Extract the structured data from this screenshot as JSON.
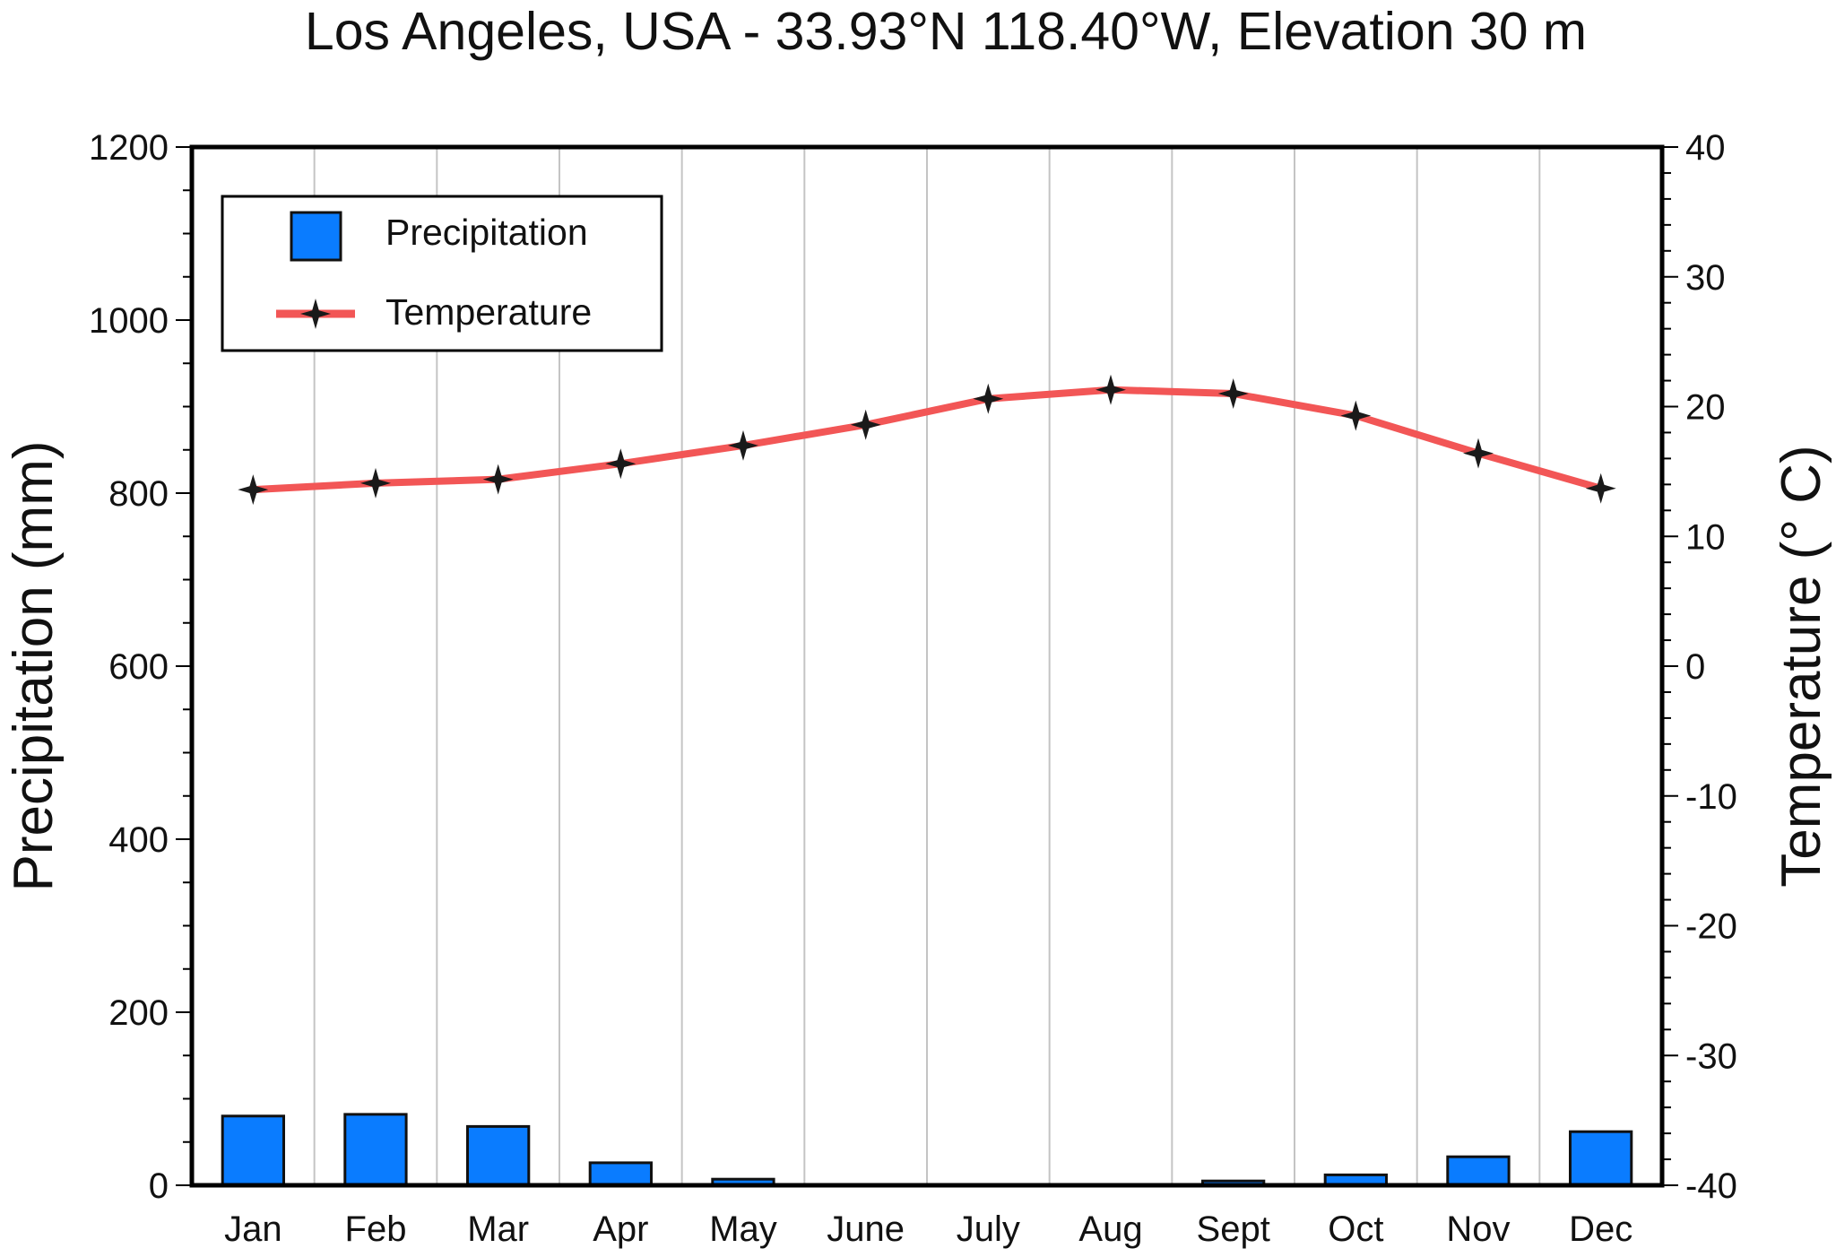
{
  "chart_data": {
    "type": "bar",
    "title": "Los Angeles, USA - 33.93°N 118.40°W, Elevation 30 m",
    "categories": [
      "Jan",
      "Feb",
      "Mar",
      "Apr",
      "May",
      "June",
      "July",
      "Aug",
      "Sept",
      "Oct",
      "Nov",
      "Dec"
    ],
    "series": [
      {
        "name": "Precipitation",
        "type": "bar",
        "axis": "left",
        "color": "#0a7cff",
        "values": [
          80,
          82,
          68,
          26,
          7,
          1,
          0,
          0,
          5,
          12,
          33,
          62
        ]
      },
      {
        "name": "Temperature",
        "type": "line",
        "axis": "right",
        "color": "#f25656",
        "marker_color": "#1a1a1a",
        "values": [
          13.6,
          14.1,
          14.4,
          15.6,
          17.0,
          18.6,
          20.6,
          21.3,
          21.0,
          19.3,
          16.4,
          13.7
        ]
      }
    ],
    "xlabel": "",
    "ylabel": "Precipitation (mm)",
    "y2label": "Temperature (° C)",
    "ylim": [
      0,
      1200
    ],
    "y2lim": [
      -40,
      40
    ],
    "yticks": [
      0,
      200,
      400,
      600,
      800,
      1000,
      1200
    ],
    "y2ticks": [
      -40,
      -30,
      -20,
      -10,
      0,
      10,
      20,
      30,
      40
    ],
    "grid": "vertical",
    "legend": {
      "position": "top-left",
      "entries": [
        "Precipitation",
        "Temperature"
      ]
    }
  }
}
